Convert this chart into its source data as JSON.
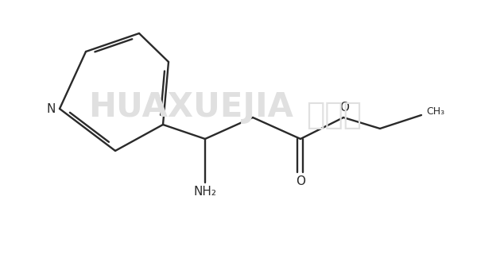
{
  "background_color": "#ffffff",
  "line_color": "#2a2a2a",
  "line_width": 1.7,
  "watermark_color": "#e0e0e0",
  "watermark_text": "HUAXUEJIA",
  "watermark_text2": "化学加",
  "label_N": "N",
  "label_NH2": "NH₂",
  "label_O_carbonyl": "O",
  "label_O_ester": "O",
  "label_CH3": "CH₃",
  "font_size_atom": 11,
  "figsize": [
    6.34,
    3.2
  ],
  "dpi": 100
}
